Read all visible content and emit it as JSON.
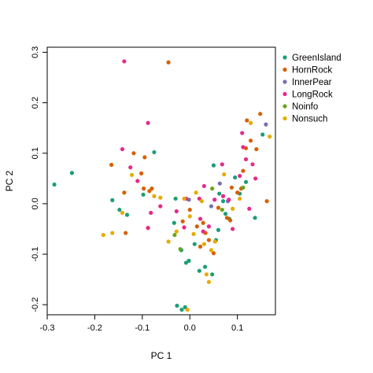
{
  "chart_data": {
    "type": "scatter",
    "title": "",
    "xlabel": "PC 1",
    "ylabel": "PC 2",
    "xlim": [
      -0.3,
      0.18
    ],
    "ylim": [
      -0.22,
      0.31
    ],
    "x_ticks": [
      -0.3,
      -0.2,
      -0.1,
      0.0,
      0.1
    ],
    "x_tick_labels": [
      "-0.3",
      "-0.2",
      "-0.1",
      "0.0",
      "0.1"
    ],
    "y_ticks": [
      -0.2,
      -0.1,
      0.0,
      0.1,
      0.2,
      0.3
    ],
    "y_tick_labels": [
      "-0.2",
      "-0.1",
      "0.0",
      "0.1",
      "0.2",
      "0.3"
    ],
    "grid": false,
    "legend_position": "right",
    "series": [
      {
        "name": "GreenIsland",
        "color": "#1b9e77",
        "points": [
          [
            -0.285,
            0.038
          ],
          [
            -0.248,
            0.061
          ],
          [
            -0.163,
            0.007
          ],
          [
            -0.148,
            -0.012
          ],
          [
            -0.132,
            -0.022
          ],
          [
            -0.098,
            0.018
          ],
          [
            -0.075,
            0.102
          ],
          [
            -0.033,
            -0.038
          ],
          [
            -0.03,
            0.01
          ],
          [
            -0.027,
            -0.202
          ],
          [
            -0.017,
            -0.21
          ],
          [
            -0.01,
            -0.205
          ],
          [
            -0.018,
            -0.092
          ],
          [
            -0.008,
            -0.117
          ],
          [
            -0.002,
            -0.113
          ],
          [
            0.01,
            -0.08
          ],
          [
            0.02,
            -0.133
          ],
          [
            0.032,
            -0.125
          ],
          [
            0.047,
            -0.14
          ],
          [
            0.055,
            -0.072
          ],
          [
            0.06,
            -0.052
          ],
          [
            0.062,
            0.02
          ],
          [
            0.07,
            0.005
          ],
          [
            0.075,
            -0.02
          ],
          [
            0.083,
            -0.03
          ],
          [
            0.095,
            0.052
          ],
          [
            0.105,
            0.02
          ],
          [
            0.118,
            0.043
          ],
          [
            0.05,
            0.076
          ],
          [
            0.137,
            -0.028
          ],
          [
            0.153,
            0.137
          ]
        ]
      },
      {
        "name": "HornRock",
        "color": "#d95f02",
        "points": [
          [
            -0.045,
            0.28
          ],
          [
            -0.165,
            0.077
          ],
          [
            -0.138,
            0.022
          ],
          [
            -0.118,
            0.1
          ],
          [
            -0.095,
            0.092
          ],
          [
            -0.102,
            0.06
          ],
          [
            -0.097,
            0.03
          ],
          [
            -0.08,
            0.03
          ],
          [
            -0.085,
            0.025
          ],
          [
            -0.135,
            -0.058
          ],
          [
            -0.088,
            -0.048
          ],
          [
            -0.015,
            -0.035
          ],
          [
            0.0,
            -0.012
          ],
          [
            0.015,
            -0.045
          ],
          [
            0.022,
            -0.085
          ],
          [
            0.028,
            -0.038
          ],
          [
            0.033,
            -0.058
          ],
          [
            0.04,
            -0.072
          ],
          [
            0.05,
            -0.098
          ],
          [
            0.06,
            -0.008
          ],
          [
            0.078,
            -0.028
          ],
          [
            0.085,
            -0.033
          ],
          [
            0.088,
            0.032
          ],
          [
            0.1,
            0.022
          ],
          [
            0.108,
            0.03
          ],
          [
            0.112,
            0.065
          ],
          [
            0.118,
            0.11
          ],
          [
            0.12,
            0.165
          ],
          [
            0.128,
            0.125
          ],
          [
            0.14,
            0.108
          ],
          [
            0.148,
            0.178
          ],
          [
            0.162,
            0.005
          ]
        ]
      },
      {
        "name": "InnerPear",
        "color": "#7570b3",
        "points": [
          [
            -0.002,
            0.008
          ],
          [
            0.045,
            -0.005
          ],
          [
            0.063,
            0.04
          ],
          [
            0.08,
            0.005
          ],
          [
            0.16,
            0.157
          ]
        ]
      },
      {
        "name": "LongRock",
        "color": "#e7298a",
        "points": [
          [
            -0.138,
            0.282
          ],
          [
            -0.142,
            0.108
          ],
          [
            -0.088,
            0.16
          ],
          [
            -0.125,
            0.072
          ],
          [
            -0.11,
            0.045
          ],
          [
            -0.082,
            -0.018
          ],
          [
            -0.088,
            -0.048
          ],
          [
            -0.062,
            -0.005
          ],
          [
            -0.028,
            -0.015
          ],
          [
            -0.012,
            -0.047
          ],
          [
            -0.008,
            0.01
          ],
          [
            0.02,
            0.01
          ],
          [
            0.022,
            -0.03
          ],
          [
            0.028,
            -0.055
          ],
          [
            0.03,
            0.035
          ],
          [
            0.04,
            -0.045
          ],
          [
            0.052,
            0.008
          ],
          [
            0.068,
            0.078
          ],
          [
            0.07,
            0.015
          ],
          [
            0.082,
            0.008
          ],
          [
            0.09,
            -0.05
          ],
          [
            0.105,
            0.055
          ],
          [
            0.11,
            0.14
          ],
          [
            0.112,
            0.112
          ],
          [
            0.118,
            0.088
          ],
          [
            0.125,
            -0.01
          ],
          [
            0.132,
            0.078
          ],
          [
            0.138,
            0.05
          ]
        ]
      },
      {
        "name": "Noinfo",
        "color": "#66a61e",
        "points": [
          [
            -0.032,
            -0.062
          ],
          [
            -0.02,
            -0.09
          ],
          [
            0.047,
            0.03
          ],
          [
            0.068,
            -0.012
          ],
          [
            0.112,
            0.032
          ]
        ]
      },
      {
        "name": "Nonsuch",
        "color": "#e6ab02",
        "points": [
          [
            -0.182,
            -0.062
          ],
          [
            -0.163,
            -0.058
          ],
          [
            -0.142,
            -0.018
          ],
          [
            -0.122,
            0.057
          ],
          [
            -0.075,
            0.015
          ],
          [
            -0.062,
            0.012
          ],
          [
            -0.045,
            -0.075
          ],
          [
            -0.028,
            -0.055
          ],
          [
            -0.012,
            0.01
          ],
          [
            -0.005,
            -0.21
          ],
          [
            0.0,
            -0.025
          ],
          [
            0.008,
            -0.06
          ],
          [
            0.013,
            0.022
          ],
          [
            0.025,
            0.005
          ],
          [
            0.03,
            -0.08
          ],
          [
            0.035,
            -0.14
          ],
          [
            0.04,
            -0.155
          ],
          [
            0.045,
            -0.092
          ],
          [
            0.053,
            -0.075
          ],
          [
            0.072,
            0.058
          ],
          [
            0.09,
            -0.01
          ],
          [
            0.105,
            0.01
          ],
          [
            0.128,
            0.16
          ],
          [
            0.168,
            0.133
          ]
        ]
      }
    ]
  }
}
